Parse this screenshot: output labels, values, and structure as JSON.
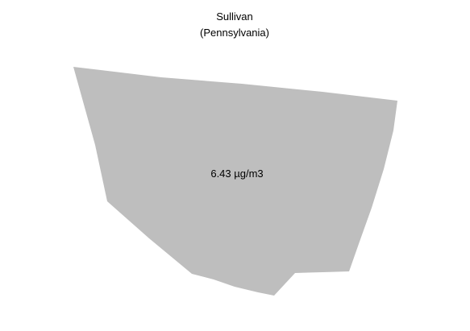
{
  "map": {
    "title": "Sullivan",
    "subtitle": "(Pennsylvania)",
    "region": {
      "name": "Sullivan",
      "value_label": "6.43 µg/m3",
      "fill_color": "#bebebe"
    },
    "background_color": "#ffffff",
    "text_color": "#000000"
  }
}
